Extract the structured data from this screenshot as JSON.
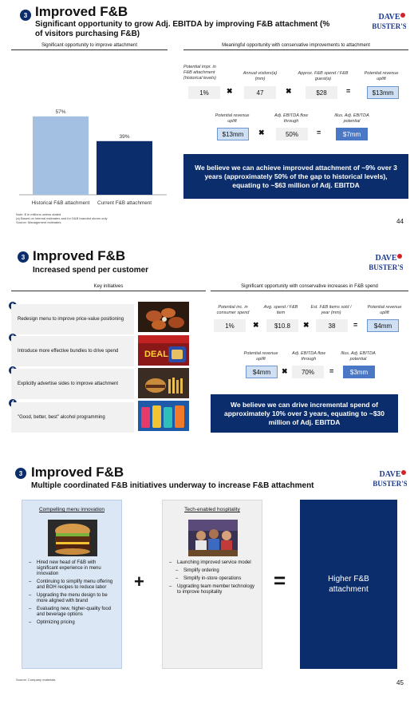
{
  "logo_text": "DAVE & BUSTER'S",
  "slide1": {
    "badge": "3",
    "title": "Improved F&B",
    "subtitle": "Significant opportunity to grow Adj. EBITDA by improving F&B attachment (% of visitors purchasing F&B)",
    "left_header": "Significant opportunity to improve attachment",
    "right_header": "Meaningful opportunity with conservative improvements to attachment",
    "chart_data": {
      "type": "bar",
      "categories": [
        "Historical F&B attachment",
        "Current F&B attachment"
      ],
      "values": [
        57,
        39
      ],
      "value_labels": [
        "57%",
        "39%"
      ],
      "colors": [
        "#a3c0e2",
        "#0b2d6b"
      ],
      "ylim": [
        0,
        65
      ],
      "title": "",
      "xlabel": "",
      "ylabel": ""
    },
    "row1": {
      "captions": [
        "Potential impr. in F&B attachment (historical levels)",
        "Annual visitors(a) (mm)",
        "Approx. F&B spend / F&B guest(a)",
        "Potential revenue uplift"
      ],
      "values": [
        "1%",
        "47",
        "$28",
        "$13mm"
      ]
    },
    "row2": {
      "captions": [
        "Potential revenue uplift",
        "Adj. EBITDA flow through",
        "Illus. Adj. EBITDA potential"
      ],
      "values": [
        "$13mm",
        "50%",
        "$7mm"
      ]
    },
    "callout": "We believe we can achieve improved attachment of ~9% over 3 years (approximately 50% of the gap to historical levels), equating to ~$63 million of Adj. EBITDA",
    "footnotes": [
      "Note: $ in millions unless stated",
      "(a) Based on internal estimates and for D&B branded stores only",
      "Source: Management estimates"
    ],
    "page": "44"
  },
  "slide2": {
    "badge": "3",
    "title": "Improved F&B",
    "subtitle": "Increased spend per customer",
    "left_header": "Key initiatives",
    "right_header": "Significant opportunity with conservative increases in F&B spend",
    "initiatives": [
      {
        "num": "1",
        "text": "Redesign menu to improve price-value positioning"
      },
      {
        "num": "2",
        "text": "Introduce more effective bundles to drive spend"
      },
      {
        "num": "3",
        "text": "Explicitly advertise sides to improve attachment"
      },
      {
        "num": "4",
        "text": "\"Good, better, best\" alcohol programming"
      }
    ],
    "deal_photo_text": "DEAL",
    "row1": {
      "captions": [
        "Potential inc. in consumer spend",
        "Avg. spend / F&B item",
        "Est. F&B items sold / year (mm)",
        "Potential revenue uplift"
      ],
      "values": [
        "1%",
        "$10.8",
        "38",
        "$4mm"
      ]
    },
    "row2": {
      "captions": [
        "Potential revenue uplift",
        "Adj. EBITDA flow through",
        "Illus. Adj. EBITDA potential"
      ],
      "values": [
        "$4mm",
        "70%",
        "$3mm"
      ]
    },
    "callout": "We believe we can drive incremental spend of approximately 10% over 3 years, equating to ~$30 million of Adj. EBITDA"
  },
  "slide3": {
    "badge": "3",
    "title": "Improved F&B",
    "subtitle": "Multiple coordinated F&B initiatives underway to increase F&B attachment",
    "panel1": {
      "header": "Compelling menu innovation",
      "bullets": [
        "Hired new head of F&B with significant experience in menu innovation",
        "Continuing to simplify menu offering and BOH recipes to reduce labor",
        "Upgrading the menu design to be more aligned with brand",
        "Evaluating new, higher-quality food and beverage options",
        "Optimizing pricing"
      ]
    },
    "panel2": {
      "header": "Tech-enabled hospitality",
      "bullets": [
        {
          "text": "Launching improved service model",
          "sub": false
        },
        {
          "text": "Simplify ordering",
          "sub": true
        },
        {
          "text": "Simplify in-store operations",
          "sub": true
        },
        {
          "text": "Upgrading team member technology to improve hospitality",
          "sub": false
        }
      ]
    },
    "plus": "+",
    "equals": "=",
    "result": "Higher F&B attachment",
    "footnote": "Source: Company materials",
    "page": "45"
  }
}
